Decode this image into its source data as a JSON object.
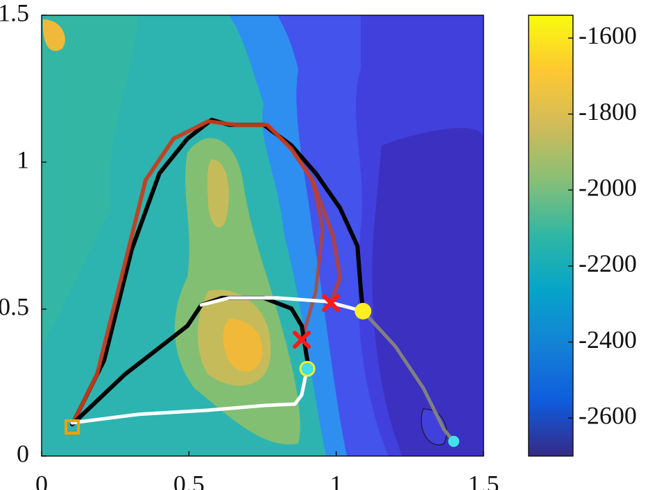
{
  "chart_data": {
    "type": "line",
    "xlim": [
      0,
      1.5
    ],
    "xticks": [
      0,
      0.5,
      1,
      1.5
    ],
    "ylim": [
      0,
      1.5
    ],
    "yticks": [
      0,
      0.5,
      1,
      1.5
    ],
    "colormap": "parula",
    "clim": [
      -2700,
      -1540
    ],
    "cticks": [
      -1600,
      -1800,
      -2000,
      -2200,
      -2400,
      -2600
    ],
    "series": [
      {
        "color": "#000000",
        "width": 6,
        "x": [
          0.104,
          0.212,
          0.306,
          0.4,
          0.495,
          0.577,
          0.636,
          0.754,
          0.848,
          0.931,
          1.013,
          1.072,
          1.084,
          1.091
        ],
        "values": [
          0.108,
          0.325,
          0.703,
          0.962,
          1.08,
          1.144,
          1.127,
          1.127,
          1.057,
          0.962,
          0.844,
          0.715,
          0.561,
          0.493
        ]
      },
      {
        "color": "#c83c1e",
        "width": 6,
        "x": [
          0.104,
          0.188,
          0.271,
          0.353,
          0.448,
          0.565,
          0.66,
          0.766,
          0.848,
          0.919,
          0.989,
          1.013,
          0.982
        ],
        "values": [
          0.108,
          0.278,
          0.608,
          0.939,
          1.08,
          1.139,
          1.127,
          1.127,
          1.045,
          0.939,
          0.75,
          0.608,
          0.521
        ]
      },
      {
        "color": "#c83c1e",
        "width": 5,
        "x": [
          0.104,
          0.188,
          0.271,
          0.353,
          0.448,
          0.565,
          0.66,
          0.766,
          0.848,
          0.919,
          0.954,
          0.931,
          0.883
        ],
        "values": [
          0.108,
          0.278,
          0.608,
          0.939,
          1.08,
          1.139,
          1.127,
          1.127,
          1.045,
          0.939,
          0.774,
          0.561,
          0.396
        ]
      },
      {
        "color": "#000000",
        "width": 6,
        "x": [
          0.104,
          0.283,
          0.495,
          0.542,
          0.612,
          0.754,
          0.848,
          0.883,
          0.902
        ],
        "values": [
          0.108,
          0.278,
          0.443,
          0.514,
          0.538,
          0.538,
          0.502,
          0.443,
          0.325
        ]
      },
      {
        "color": "#ffffff",
        "width": 5,
        "x": [
          0.104,
          0.33,
          0.565,
          0.754,
          0.86,
          0.883,
          0.895,
          0.902
        ],
        "values": [
          0.113,
          0.142,
          0.156,
          0.172,
          0.177,
          0.208,
          0.267,
          0.297
        ]
      },
      {
        "color": "#ffffff",
        "width": 5,
        "x": [
          0.542,
          0.636,
          0.801,
          0.966,
          1.091
        ],
        "values": [
          0.514,
          0.538,
          0.538,
          0.526,
          0.493
        ]
      },
      {
        "color": "#808080",
        "width": 5,
        "x": [
          1.091,
          1.201,
          1.296,
          1.366,
          1.399
        ],
        "values": [
          0.493,
          0.373,
          0.231,
          0.09,
          0.05
        ]
      }
    ],
    "markers": [
      {
        "shape": "square",
        "color": "#f5a000",
        "x": 0.104,
        "y": 0.099
      },
      {
        "shape": "circle",
        "color": "#ffee22",
        "x": 1.091,
        "y": 0.493
      },
      {
        "shape": "ring",
        "color": "#44e0e8",
        "x": 0.902,
        "y": 0.297
      },
      {
        "shape": "cross",
        "color": "#ff1a1a",
        "x": 0.982,
        "y": 0.521
      },
      {
        "shape": "cross",
        "color": "#ff1a1a",
        "x": 0.883,
        "y": 0.396
      },
      {
        "shape": "dot",
        "color": "#44e0e8",
        "x": 1.399,
        "y": 0.05
      }
    ]
  }
}
